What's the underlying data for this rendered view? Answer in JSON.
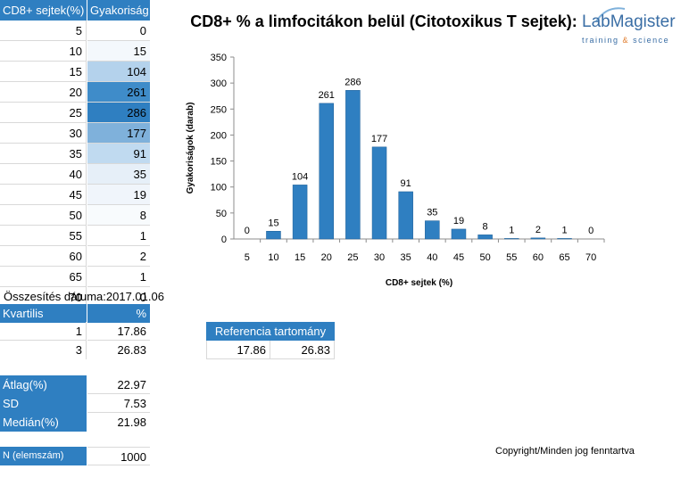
{
  "freq_table": {
    "header_x": "CD8+ sejtek(%)",
    "header_y": "Gyakoriság",
    "rows": [
      {
        "x": "5",
        "y": "0",
        "shade": "#ffffff"
      },
      {
        "x": "10",
        "y": "15",
        "shade": "#f4f8fc"
      },
      {
        "x": "15",
        "y": "104",
        "shade": "#b4d2ec"
      },
      {
        "x": "20",
        "y": "261",
        "shade": "#3f8cc9"
      },
      {
        "x": "25",
        "y": "286",
        "shade": "#2f7fc1"
      },
      {
        "x": "30",
        "y": "177",
        "shade": "#7fb1db"
      },
      {
        "x": "35",
        "y": "91",
        "shade": "#c0daf0"
      },
      {
        "x": "40",
        "y": "35",
        "shade": "#e6eff8"
      },
      {
        "x": "45",
        "y": "19",
        "shade": "#f0f5fb"
      },
      {
        "x": "50",
        "y": "8",
        "shade": "#f8fbfd"
      },
      {
        "x": "55",
        "y": "1",
        "shade": "#ffffff"
      },
      {
        "x": "60",
        "y": "2",
        "shade": "#ffffff"
      },
      {
        "x": "65",
        "y": "1",
        "shade": "#ffffff"
      },
      {
        "x": "70",
        "y": "0",
        "shade": "#ffffff"
      }
    ]
  },
  "summary_date": {
    "label": "Összesítés dátuma:",
    "value": "2017.01.06"
  },
  "quartiles": {
    "header_label": "Kvartilis",
    "header_pct": "%",
    "rows": [
      {
        "q": "1",
        "v": "17.86"
      },
      {
        "q": "3",
        "v": "26.83"
      }
    ]
  },
  "reference": {
    "title": "Referencia tartomány",
    "low": "17.86",
    "high": "26.83"
  },
  "stats": {
    "mean_label": "Átlag(%)",
    "mean": "22.97",
    "sd_label": "SD",
    "sd": "7.53",
    "median_label": "Medián(%)",
    "median": "21.98",
    "n_label": "N (elemszám)",
    "n": "1000"
  },
  "logo": {
    "name": "LabMagister",
    "tagline_1": "training",
    "amp": "&",
    "tagline_2": "science"
  },
  "copyright": "Copyright/Minden jog fenntartva",
  "colors": {
    "bar": "#2f7fc1",
    "header": "#2f7fc1",
    "amp": "#e07b2a"
  },
  "chart_data": {
    "type": "bar",
    "title": "CD8+ % a limfocitákon belül (Citotoxikus T sejtek):",
    "xlabel": "CD8+ sejtek (%)",
    "ylabel": "Gyakoriságok (darab)",
    "categories": [
      "5",
      "10",
      "15",
      "20",
      "25",
      "30",
      "35",
      "40",
      "45",
      "50",
      "55",
      "60",
      "65",
      "70"
    ],
    "values": [
      0,
      15,
      104,
      261,
      286,
      177,
      91,
      35,
      19,
      8,
      1,
      2,
      1,
      0
    ],
    "ylim": [
      0,
      350
    ],
    "yticks": [
      0,
      50,
      100,
      150,
      200,
      250,
      300,
      350
    ],
    "grid": false,
    "data_labels": true
  }
}
